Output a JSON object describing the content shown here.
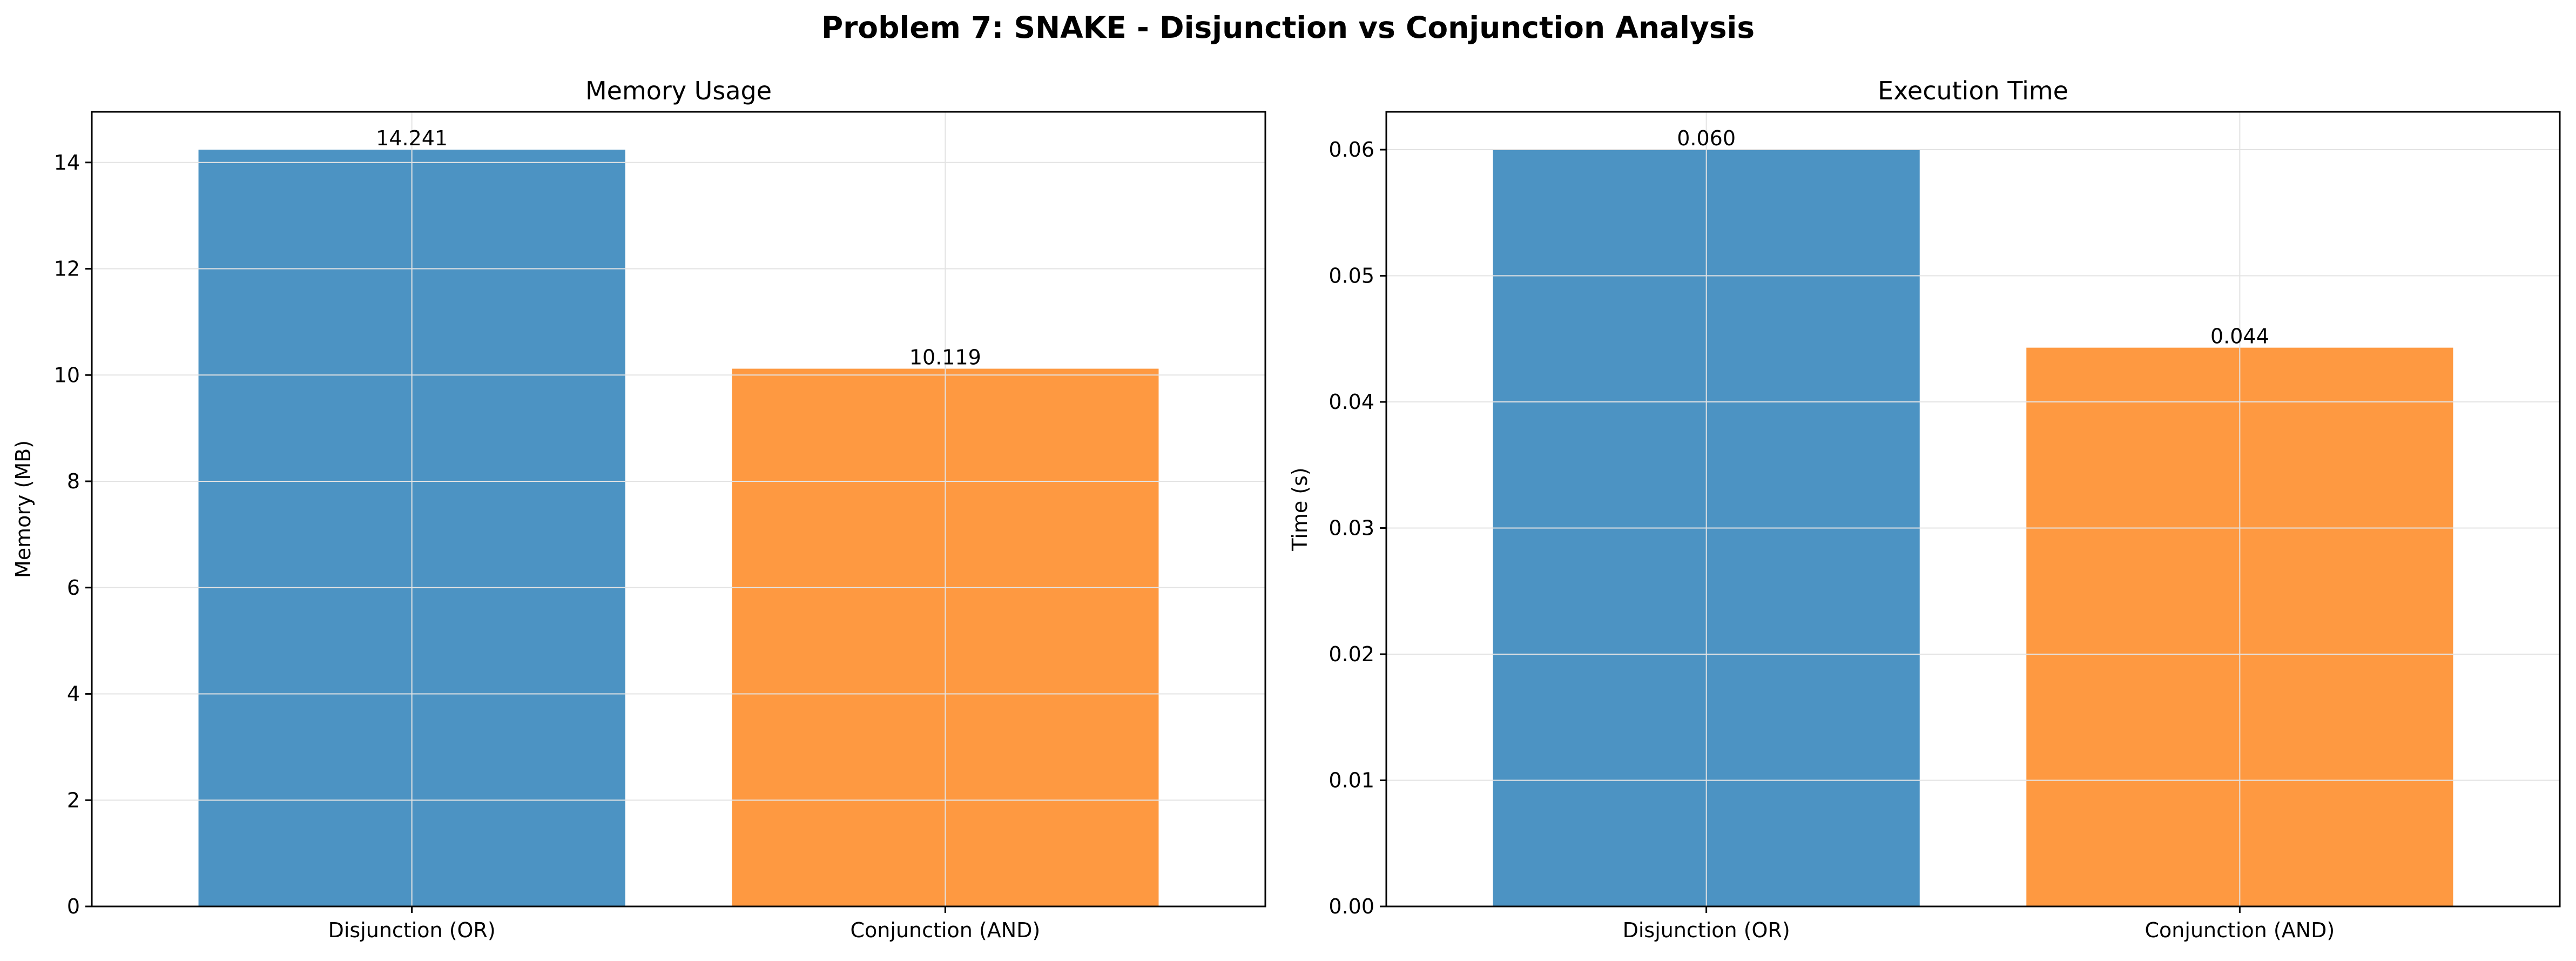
{
  "figure_title": "Problem 7: SNAKE - Disjunction vs Conjunction Analysis",
  "colors": {
    "or": "#4c93c3",
    "and": "#fe9941",
    "grid": "#e3e3e3",
    "axis": "#000000"
  },
  "chart_data": [
    {
      "type": "bar",
      "title": "Memory Usage",
      "xlabel": "",
      "ylabel": "Memory (MB)",
      "categories": [
        "Disjunction (OR)",
        "Conjunction (AND)"
      ],
      "values": [
        14.241,
        10.119
      ],
      "value_labels": [
        "14.241",
        "10.119"
      ],
      "ylim": [
        0,
        14.953
      ],
      "yticks": [
        0,
        2,
        4,
        6,
        8,
        10,
        12,
        14
      ],
      "ytick_labels": [
        "0",
        "2",
        "4",
        "6",
        "8",
        "10",
        "12",
        "14"
      ],
      "grid": true,
      "legend": "none"
    },
    {
      "type": "bar",
      "title": "Execution Time",
      "xlabel": "",
      "ylabel": "Time (s)",
      "categories": [
        "Disjunction (OR)",
        "Conjunction (AND)"
      ],
      "values": [
        0.06,
        0.0443
      ],
      "value_labels": [
        "0.060",
        "0.044"
      ],
      "ylim": [
        0,
        0.063
      ],
      "yticks": [
        0,
        0.01,
        0.02,
        0.03,
        0.04,
        0.05,
        0.06
      ],
      "ytick_labels": [
        "0.00",
        "0.01",
        "0.02",
        "0.03",
        "0.04",
        "0.05",
        "0.06"
      ],
      "grid": true,
      "legend": "none"
    }
  ]
}
